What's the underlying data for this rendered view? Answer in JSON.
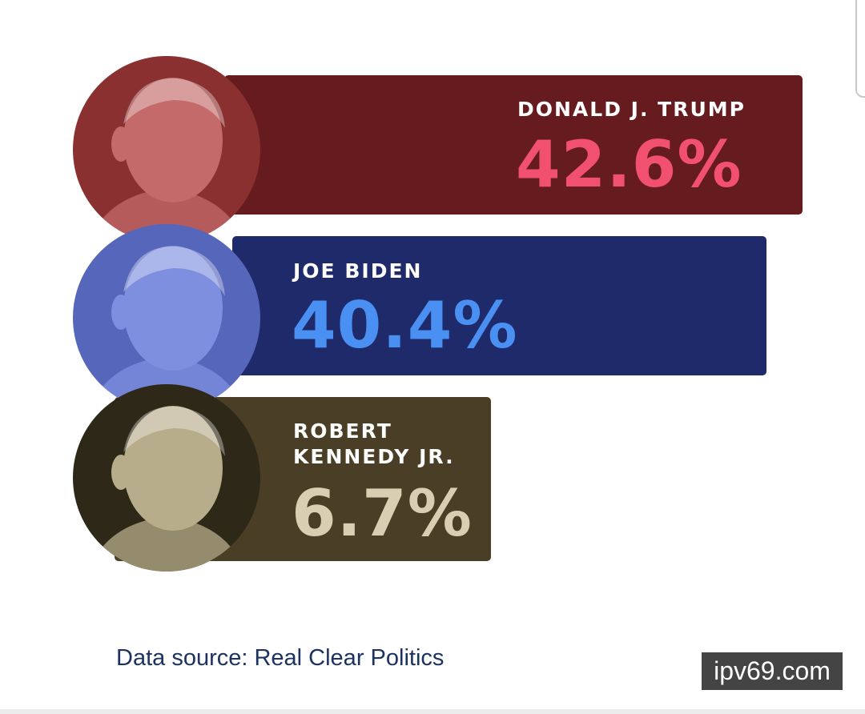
{
  "chart_data": {
    "type": "bar",
    "orientation": "horizontal",
    "categories": [
      "DONALD J. TRUMP",
      "JOE BIDEN",
      "ROBERT KENNEDY JR."
    ],
    "values": [
      42.6,
      40.4,
      6.7
    ],
    "labels": [
      "42.6%",
      "40.4%",
      "6.7%"
    ],
    "name_lines": [
      [
        "DONALD J. TRUMP"
      ],
      [
        "JOE BIDEN"
      ],
      [
        "ROBERT",
        "KENNEDY JR."
      ]
    ],
    "colors": {
      "bars": [
        "#661c1e",
        "#1f2a6b",
        "#4a3f26"
      ],
      "values": [
        "#f2506f",
        "#4a8ff2",
        "#d9ceb2"
      ],
      "photo_tints": [
        "#c46a6a",
        "#7f8fe0",
        "#b8ad8a"
      ]
    },
    "source": "Data source: Real Clear Politics"
  },
  "watermark": "ipv69.com"
}
